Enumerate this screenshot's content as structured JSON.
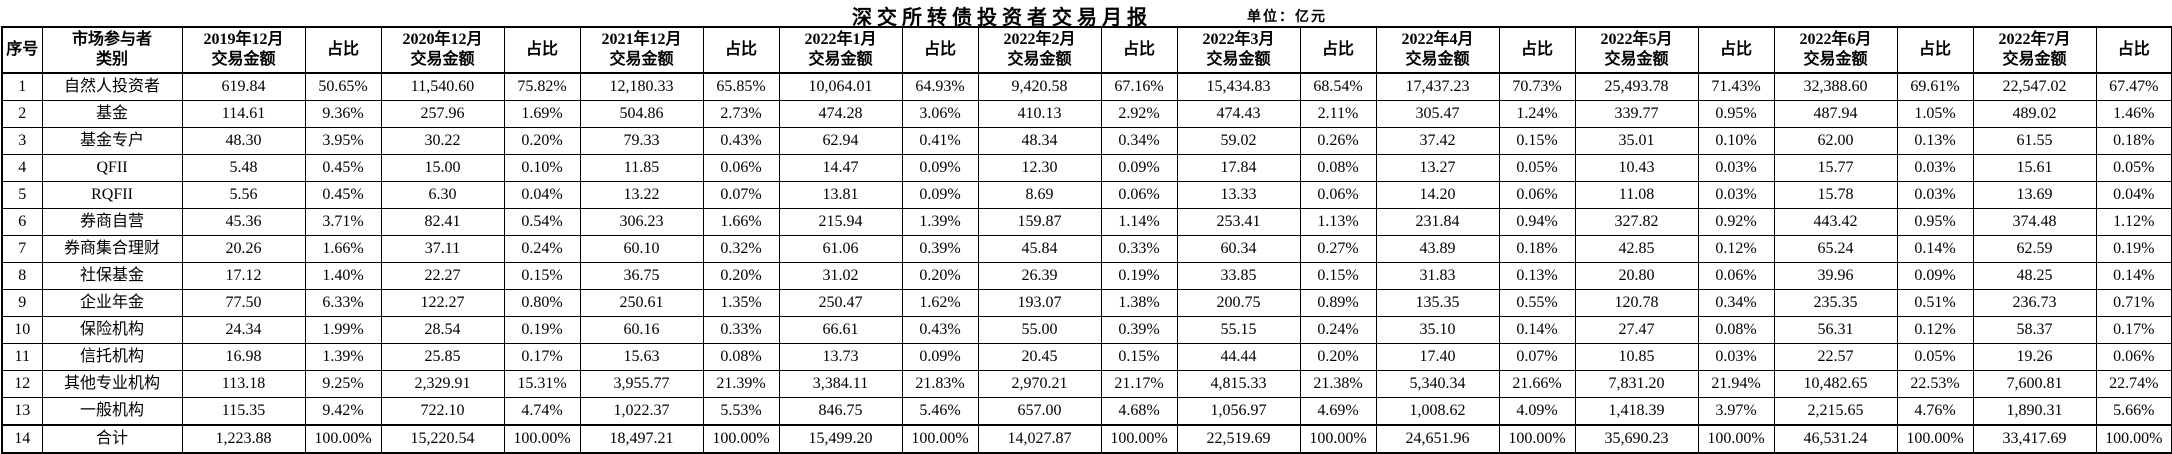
{
  "page": {
    "title": "深交所转债投资者交易月报",
    "unit_label": "单位：亿元"
  },
  "table": {
    "headers": {
      "seq": "序号",
      "category": "市场参与者\n类别",
      "amount_label": "交易金额",
      "ratio_label": "占比",
      "periods": [
        "2019年12月",
        "2020年12月",
        "2021年12月",
        "2022年1月",
        "2022年2月",
        "2022年3月",
        "2022年4月",
        "2022年5月",
        "2022年6月",
        "2022年7月"
      ]
    },
    "rows": [
      {
        "seq": "1",
        "category": "自然人投资者",
        "values": [
          "619.84",
          "50.65%",
          "11,540.60",
          "75.82%",
          "12,180.33",
          "65.85%",
          "10,064.01",
          "64.93%",
          "9,420.58",
          "67.16%",
          "15,434.83",
          "68.54%",
          "17,437.23",
          "70.73%",
          "25,493.78",
          "71.43%",
          "32,388.60",
          "69.61%",
          "22,547.02",
          "67.47%"
        ]
      },
      {
        "seq": "2",
        "category": "基金",
        "values": [
          "114.61",
          "9.36%",
          "257.96",
          "1.69%",
          "504.86",
          "2.73%",
          "474.28",
          "3.06%",
          "410.13",
          "2.92%",
          "474.43",
          "2.11%",
          "305.47",
          "1.24%",
          "339.77",
          "0.95%",
          "487.94",
          "1.05%",
          "489.02",
          "1.46%"
        ]
      },
      {
        "seq": "3",
        "category": "基金专户",
        "values": [
          "48.30",
          "3.95%",
          "30.22",
          "0.20%",
          "79.33",
          "0.43%",
          "62.94",
          "0.41%",
          "48.34",
          "0.34%",
          "59.02",
          "0.26%",
          "37.42",
          "0.15%",
          "35.01",
          "0.10%",
          "62.00",
          "0.13%",
          "61.55",
          "0.18%"
        ]
      },
      {
        "seq": "4",
        "category": "QFII",
        "values": [
          "5.48",
          "0.45%",
          "15.00",
          "0.10%",
          "11.85",
          "0.06%",
          "14.47",
          "0.09%",
          "12.30",
          "0.09%",
          "17.84",
          "0.08%",
          "13.27",
          "0.05%",
          "10.43",
          "0.03%",
          "15.77",
          "0.03%",
          "15.61",
          "0.05%"
        ]
      },
      {
        "seq": "5",
        "category": "RQFII",
        "values": [
          "5.56",
          "0.45%",
          "6.30",
          "0.04%",
          "13.22",
          "0.07%",
          "13.81",
          "0.09%",
          "8.69",
          "0.06%",
          "13.33",
          "0.06%",
          "14.20",
          "0.06%",
          "11.08",
          "0.03%",
          "15.78",
          "0.03%",
          "13.69",
          "0.04%"
        ]
      },
      {
        "seq": "6",
        "category": "券商自营",
        "values": [
          "45.36",
          "3.71%",
          "82.41",
          "0.54%",
          "306.23",
          "1.66%",
          "215.94",
          "1.39%",
          "159.87",
          "1.14%",
          "253.41",
          "1.13%",
          "231.84",
          "0.94%",
          "327.82",
          "0.92%",
          "443.42",
          "0.95%",
          "374.48",
          "1.12%"
        ]
      },
      {
        "seq": "7",
        "category": "券商集合理财",
        "values": [
          "20.26",
          "1.66%",
          "37.11",
          "0.24%",
          "60.10",
          "0.32%",
          "61.06",
          "0.39%",
          "45.84",
          "0.33%",
          "60.34",
          "0.27%",
          "43.89",
          "0.18%",
          "42.85",
          "0.12%",
          "65.24",
          "0.14%",
          "62.59",
          "0.19%"
        ]
      },
      {
        "seq": "8",
        "category": "社保基金",
        "values": [
          "17.12",
          "1.40%",
          "22.27",
          "0.15%",
          "36.75",
          "0.20%",
          "31.02",
          "0.20%",
          "26.39",
          "0.19%",
          "33.85",
          "0.15%",
          "31.83",
          "0.13%",
          "20.80",
          "0.06%",
          "39.96",
          "0.09%",
          "48.25",
          "0.14%"
        ]
      },
      {
        "seq": "9",
        "category": "企业年金",
        "values": [
          "77.50",
          "6.33%",
          "122.27",
          "0.80%",
          "250.61",
          "1.35%",
          "250.47",
          "1.62%",
          "193.07",
          "1.38%",
          "200.75",
          "0.89%",
          "135.35",
          "0.55%",
          "120.78",
          "0.34%",
          "235.35",
          "0.51%",
          "236.73",
          "0.71%"
        ]
      },
      {
        "seq": "10",
        "category": "保险机构",
        "values": [
          "24.34",
          "1.99%",
          "28.54",
          "0.19%",
          "60.16",
          "0.33%",
          "66.61",
          "0.43%",
          "55.00",
          "0.39%",
          "55.15",
          "0.24%",
          "35.10",
          "0.14%",
          "27.47",
          "0.08%",
          "56.31",
          "0.12%",
          "58.37",
          "0.17%"
        ]
      },
      {
        "seq": "11",
        "category": "信托机构",
        "values": [
          "16.98",
          "1.39%",
          "25.85",
          "0.17%",
          "15.63",
          "0.08%",
          "13.73",
          "0.09%",
          "20.45",
          "0.15%",
          "44.44",
          "0.20%",
          "17.40",
          "0.07%",
          "10.85",
          "0.03%",
          "22.57",
          "0.05%",
          "19.26",
          "0.06%"
        ]
      },
      {
        "seq": "12",
        "category": "其他专业机构",
        "values": [
          "113.18",
          "9.25%",
          "2,329.91",
          "15.31%",
          "3,955.77",
          "21.39%",
          "3,384.11",
          "21.83%",
          "2,970.21",
          "21.17%",
          "4,815.33",
          "21.38%",
          "5,340.34",
          "21.66%",
          "7,831.20",
          "21.94%",
          "10,482.65",
          "22.53%",
          "7,600.81",
          "22.74%"
        ]
      },
      {
        "seq": "13",
        "category": "一般机构",
        "values": [
          "115.35",
          "9.42%",
          "722.10",
          "4.74%",
          "1,022.37",
          "5.53%",
          "846.75",
          "5.46%",
          "657.00",
          "4.68%",
          "1,056.97",
          "4.69%",
          "1,008.62",
          "4.09%",
          "1,418.39",
          "3.97%",
          "2,215.65",
          "4.76%",
          "1,890.31",
          "5.66%"
        ]
      },
      {
        "seq": "14",
        "category": "合计",
        "values": [
          "1,223.88",
          "100.00%",
          "15,220.54",
          "100.00%",
          "18,497.21",
          "100.00%",
          "15,499.20",
          "100.00%",
          "14,027.87",
          "100.00%",
          "22,519.69",
          "100.00%",
          "24,651.96",
          "100.00%",
          "35,690.23",
          "100.00%",
          "46,531.24",
          "100.00%",
          "33,417.69",
          "100.00%"
        ]
      }
    ]
  }
}
